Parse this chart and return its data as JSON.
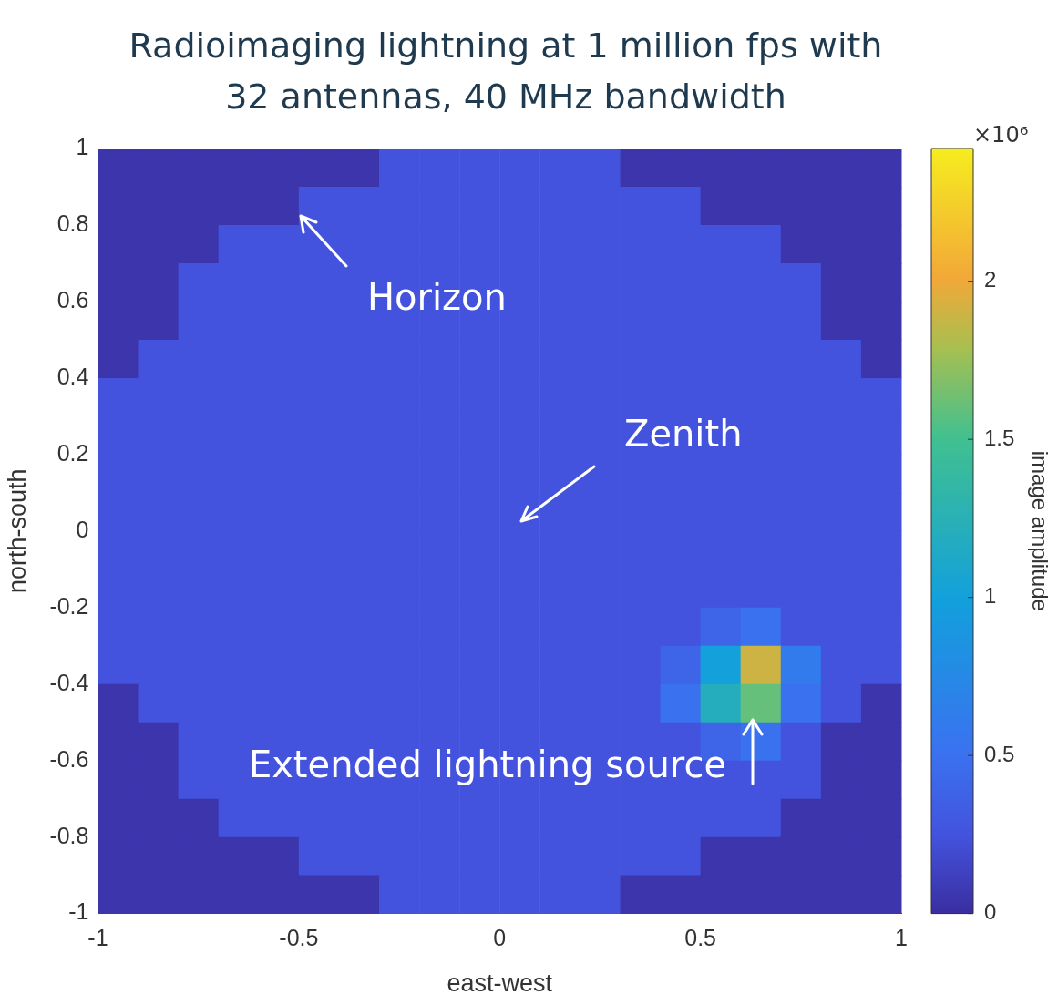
{
  "chart_data": {
    "type": "heatmap",
    "title": "Radioimaging lightning at 1 million fps with 32 antennas, 40 MHz bandwidth",
    "xlabel": "east-west",
    "ylabel": "north-south",
    "clabel": "image amplitude",
    "x": [
      -0.95,
      -0.85,
      -0.75,
      -0.65,
      -0.55,
      -0.45,
      -0.35,
      -0.25,
      -0.15,
      -0.05,
      0.05,
      0.15,
      0.25,
      0.35,
      0.45,
      0.55,
      0.65,
      0.75,
      0.85,
      0.95
    ],
    "xlim": [
      -1,
      1
    ],
    "xticks": [
      -1,
      -0.5,
      0,
      0.5,
      1
    ],
    "ylim": [
      -1,
      1
    ],
    "yticks": [
      -1,
      -0.8,
      -0.6,
      -0.4,
      -0.2,
      0,
      0.2,
      0.4,
      0.6,
      0.8,
      1
    ],
    "clim": [
      0,
      2.42
    ],
    "cticks": [
      0,
      0.5,
      1,
      1.5,
      2
    ],
    "cells": [
      [
        0.05,
        0.05,
        0.05,
        0.05,
        0.05,
        0.05,
        0.05,
        0.25,
        0.25,
        0.25,
        0.25,
        0.25,
        0.25,
        0.05,
        0.05,
        0.05,
        0.05,
        0.05,
        0.05,
        0.05
      ],
      [
        0.05,
        0.05,
        0.05,
        0.05,
        0.05,
        0.25,
        0.25,
        0.25,
        0.25,
        0.25,
        0.25,
        0.25,
        0.25,
        0.25,
        0.25,
        0.05,
        0.05,
        0.05,
        0.05,
        0.05
      ],
      [
        0.05,
        0.05,
        0.05,
        0.25,
        0.25,
        0.25,
        0.25,
        0.25,
        0.25,
        0.25,
        0.25,
        0.25,
        0.25,
        0.25,
        0.25,
        0.25,
        0.25,
        0.05,
        0.05,
        0.05
      ],
      [
        0.05,
        0.05,
        0.25,
        0.25,
        0.25,
        0.25,
        0.25,
        0.25,
        0.25,
        0.25,
        0.25,
        0.25,
        0.25,
        0.25,
        0.25,
        0.25,
        0.25,
        0.25,
        0.05,
        0.05
      ],
      [
        0.05,
        0.05,
        0.25,
        0.25,
        0.25,
        0.25,
        0.25,
        0.25,
        0.25,
        0.25,
        0.25,
        0.25,
        0.25,
        0.25,
        0.25,
        0.25,
        0.25,
        0.25,
        0.05,
        0.05
      ],
      [
        0.05,
        0.25,
        0.25,
        0.25,
        0.25,
        0.25,
        0.25,
        0.25,
        0.25,
        0.25,
        0.25,
        0.25,
        0.25,
        0.25,
        0.25,
        0.25,
        0.25,
        0.25,
        0.25,
        0.05
      ],
      [
        0.25,
        0.25,
        0.25,
        0.25,
        0.25,
        0.25,
        0.25,
        0.25,
        0.25,
        0.25,
        0.25,
        0.25,
        0.25,
        0.25,
        0.25,
        0.25,
        0.25,
        0.25,
        0.25,
        0.25
      ],
      [
        0.25,
        0.25,
        0.25,
        0.25,
        0.25,
        0.25,
        0.25,
        0.25,
        0.25,
        0.25,
        0.25,
        0.25,
        0.25,
        0.25,
        0.25,
        0.25,
        0.25,
        0.25,
        0.25,
        0.25
      ],
      [
        0.25,
        0.25,
        0.25,
        0.25,
        0.25,
        0.25,
        0.25,
        0.25,
        0.25,
        0.25,
        0.25,
        0.25,
        0.25,
        0.25,
        0.25,
        0.25,
        0.25,
        0.25,
        0.25,
        0.25
      ],
      [
        0.25,
        0.25,
        0.25,
        0.25,
        0.25,
        0.25,
        0.25,
        0.25,
        0.25,
        0.25,
        0.25,
        0.25,
        0.25,
        0.25,
        0.25,
        0.25,
        0.25,
        0.25,
        0.25,
        0.25
      ],
      [
        0.25,
        0.25,
        0.25,
        0.25,
        0.25,
        0.25,
        0.25,
        0.25,
        0.25,
        0.25,
        0.25,
        0.25,
        0.25,
        0.25,
        0.25,
        0.25,
        0.25,
        0.25,
        0.25,
        0.25
      ],
      [
        0.25,
        0.25,
        0.25,
        0.25,
        0.25,
        0.25,
        0.25,
        0.25,
        0.25,
        0.25,
        0.25,
        0.25,
        0.25,
        0.25,
        0.25,
        0.25,
        0.25,
        0.25,
        0.25,
        0.25
      ],
      [
        0.25,
        0.25,
        0.25,
        0.25,
        0.25,
        0.25,
        0.25,
        0.25,
        0.25,
        0.25,
        0.25,
        0.25,
        0.25,
        0.25,
        0.25,
        0.4,
        0.5,
        0.25,
        0.25,
        0.25
      ],
      [
        0.25,
        0.25,
        0.25,
        0.25,
        0.25,
        0.25,
        0.25,
        0.25,
        0.25,
        0.25,
        0.25,
        0.25,
        0.25,
        0.25,
        0.4,
        1.0,
        1.9,
        0.6,
        0.25,
        0.25
      ],
      [
        0.05,
        0.25,
        0.25,
        0.25,
        0.25,
        0.25,
        0.25,
        0.25,
        0.25,
        0.25,
        0.25,
        0.25,
        0.25,
        0.25,
        0.5,
        1.2,
        1.6,
        0.5,
        0.25,
        0.05
      ],
      [
        0.05,
        0.05,
        0.25,
        0.25,
        0.25,
        0.25,
        0.25,
        0.25,
        0.25,
        0.25,
        0.25,
        0.25,
        0.25,
        0.25,
        0.25,
        0.4,
        0.5,
        0.25,
        0.05,
        0.05
      ],
      [
        0.05,
        0.05,
        0.25,
        0.25,
        0.25,
        0.25,
        0.25,
        0.25,
        0.25,
        0.25,
        0.25,
        0.25,
        0.25,
        0.25,
        0.25,
        0.25,
        0.25,
        0.25,
        0.05,
        0.05
      ],
      [
        0.05,
        0.05,
        0.05,
        0.25,
        0.25,
        0.25,
        0.25,
        0.25,
        0.25,
        0.25,
        0.25,
        0.25,
        0.25,
        0.25,
        0.25,
        0.25,
        0.25,
        0.05,
        0.05,
        0.05
      ],
      [
        0.05,
        0.05,
        0.05,
        0.05,
        0.05,
        0.25,
        0.25,
        0.25,
        0.25,
        0.25,
        0.25,
        0.25,
        0.25,
        0.25,
        0.25,
        0.05,
        0.05,
        0.05,
        0.05,
        0.05
      ],
      [
        0.05,
        0.05,
        0.05,
        0.05,
        0.05,
        0.05,
        0.05,
        0.25,
        0.25,
        0.25,
        0.25,
        0.25,
        0.25,
        0.05,
        0.05,
        0.05,
        0.05,
        0.05,
        0.05,
        0.05
      ]
    ],
    "annotations": [
      "Horizon",
      "Zenith",
      "Extended lightning source",
      "×10⁶"
    ],
    "grid": false,
    "legend": false
  }
}
